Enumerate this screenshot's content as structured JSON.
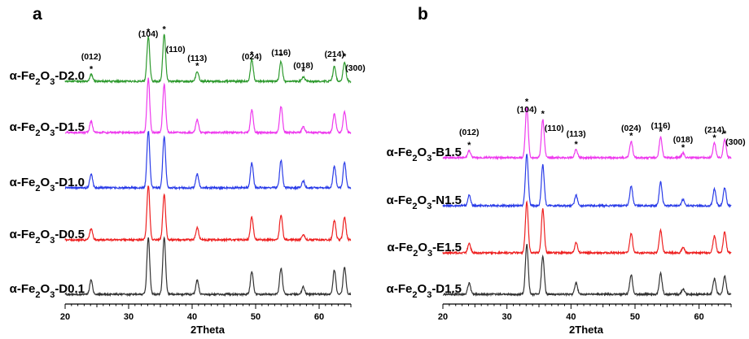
{
  "chart_data": [
    {
      "panel": "a",
      "type": "line",
      "xlabel": "2Theta",
      "xlim": [
        20,
        65
      ],
      "xticks": [
        20,
        30,
        40,
        50,
        60
      ],
      "peaks_2theta": [
        24.1,
        33.1,
        35.6,
        40.8,
        49.4,
        54.0,
        57.5,
        62.4,
        64.0
      ],
      "hkl_labels": [
        "(012)",
        "(104)",
        "(110)",
        "(113)",
        "(024)",
        "(116)",
        "(018)",
        "(214)",
        "(300)"
      ],
      "series": [
        {
          "prefix": "α-Fe",
          "sub1": "2",
          "mid": "O",
          "sub2": "3",
          "suffix": "-D2.0",
          "color": "#2e9a2e",
          "relative_intensity": [
            0.12,
            0.78,
            0.82,
            0.18,
            0.38,
            0.35,
            0.08,
            0.26,
            0.34
          ]
        },
        {
          "prefix": "α-Fe",
          "sub1": "2",
          "mid": "O",
          "sub2": "3",
          "suffix": "-D1.5",
          "color": "#ee3aee",
          "relative_intensity": [
            0.2,
            0.95,
            0.85,
            0.23,
            0.4,
            0.46,
            0.1,
            0.33,
            0.36
          ]
        },
        {
          "prefix": "α-Fe",
          "sub1": "2",
          "mid": "O",
          "sub2": "3",
          "suffix": "-D1.0",
          "color": "#2b3de8",
          "relative_intensity": [
            0.24,
            1.0,
            0.9,
            0.24,
            0.44,
            0.48,
            0.12,
            0.38,
            0.45
          ]
        },
        {
          "prefix": "α-Fe",
          "sub1": "2",
          "mid": "O",
          "sub2": "3",
          "suffix": "-D0.5",
          "color": "#ee2020",
          "relative_intensity": [
            0.2,
            0.95,
            0.8,
            0.22,
            0.4,
            0.44,
            0.1,
            0.34,
            0.4
          ]
        },
        {
          "prefix": "α-Fe",
          "sub1": "2",
          "mid": "O",
          "sub2": "3",
          "suffix": "-D0.1",
          "color": "#333333",
          "relative_intensity": [
            0.25,
            1.0,
            1.0,
            0.25,
            0.4,
            0.46,
            0.13,
            0.42,
            0.47
          ]
        }
      ]
    },
    {
      "panel": "b",
      "type": "line",
      "xlabel": "2Theta",
      "xlim": [
        20,
        65
      ],
      "xticks": [
        20,
        30,
        40,
        50,
        60
      ],
      "peaks_2theta": [
        24.1,
        33.1,
        35.6,
        40.8,
        49.4,
        54.0,
        57.5,
        62.4,
        64.0
      ],
      "hkl_labels": [
        "(012)",
        "(104)",
        "(110)",
        "(113)",
        "(024)",
        "(116)",
        "(018)",
        "(214)",
        "(300)"
      ],
      "series": [
        {
          "prefix": "α-Fe",
          "sub1": "2",
          "mid": "O",
          "sub2": "3",
          "suffix": "-B1.5",
          "color": "#ee3aee",
          "relative_intensity": [
            0.14,
            0.98,
            0.74,
            0.16,
            0.32,
            0.4,
            0.09,
            0.28,
            0.36
          ]
        },
        {
          "prefix": "α-Fe",
          "sub1": "2",
          "mid": "O",
          "sub2": "3",
          "suffix": "-N1.5",
          "color": "#2b3de8",
          "relative_intensity": [
            0.2,
            1.0,
            0.78,
            0.2,
            0.38,
            0.45,
            0.12,
            0.32,
            0.35
          ]
        },
        {
          "prefix": "α-Fe",
          "sub1": "2",
          "mid": "O",
          "sub2": "3",
          "suffix": "-E1.5",
          "color": "#ee2020",
          "relative_intensity": [
            0.18,
            0.98,
            0.84,
            0.2,
            0.37,
            0.43,
            0.1,
            0.33,
            0.4
          ]
        },
        {
          "prefix": "α-Fe",
          "sub1": "2",
          "mid": "O",
          "sub2": "3",
          "suffix": "-D1.5",
          "color": "#333333",
          "relative_intensity": [
            0.22,
            0.96,
            0.72,
            0.22,
            0.38,
            0.4,
            0.1,
            0.3,
            0.36
          ]
        }
      ]
    }
  ]
}
